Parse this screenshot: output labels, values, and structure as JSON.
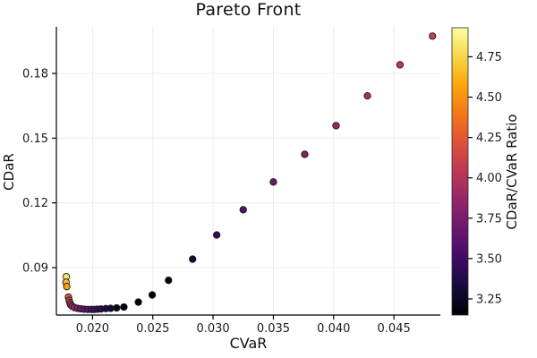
{
  "title": "Pareto Front",
  "chart_data": {
    "type": "scatter",
    "title": "Pareto Front",
    "xlabel": "CVaR",
    "ylabel": "CDaR",
    "colorbar_label": "CDaR/CVaR Ratio",
    "colormap": "inferno",
    "grid": true,
    "legend": "none",
    "marker": "circle",
    "xlim": [
      0.017,
      0.04885
    ],
    "ylim": [
      0.068,
      0.2016
    ],
    "clim": [
      3.15,
      4.93
    ],
    "x_ticks": {
      "values": [
        0.02,
        0.025,
        0.03,
        0.035,
        0.04,
        0.045
      ],
      "labels": [
        "0.020",
        "0.025",
        "0.030",
        "0.035",
        "0.040",
        "0.045"
      ]
    },
    "y_ticks": {
      "values": [
        0.09,
        0.12,
        0.15,
        0.18
      ],
      "labels": [
        "0.09",
        "0.12",
        "0.15",
        "0.18"
      ]
    },
    "colorbar_ticks": {
      "values": [
        3.25,
        3.5,
        3.75,
        4.0,
        4.25,
        4.5,
        4.75
      ],
      "labels": [
        "3.25",
        "3.50",
        "3.75",
        "4.00",
        "4.25",
        "4.50",
        "4.75"
      ]
    },
    "color_rule": "marker color = inferno( (CDaR/CVaR - clim[0]) / (clim[1] - clim[0]) )",
    "points_format": [
      "CVaR",
      "CDaR"
    ],
    "points": [
      [
        0.01782,
        0.0858
      ],
      [
        0.0178,
        0.0832
      ],
      [
        0.01786,
        0.0812
      ],
      [
        0.018,
        0.0763
      ],
      [
        0.01806,
        0.0748
      ],
      [
        0.01812,
        0.0737
      ],
      [
        0.01818,
        0.0728
      ],
      [
        0.0183,
        0.0721
      ],
      [
        0.01848,
        0.0715
      ],
      [
        0.01875,
        0.0711
      ],
      [
        0.019,
        0.0709
      ],
      [
        0.0193,
        0.0707
      ],
      [
        0.0196,
        0.0706
      ],
      [
        0.0199,
        0.0706
      ],
      [
        0.02015,
        0.0706
      ],
      [
        0.0204,
        0.0707
      ],
      [
        0.0207,
        0.0708
      ],
      [
        0.0211,
        0.071
      ],
      [
        0.0215,
        0.0711
      ],
      [
        0.022,
        0.0713
      ],
      [
        0.0226,
        0.0717
      ],
      [
        0.0238,
        0.074
      ],
      [
        0.02495,
        0.0773
      ],
      [
        0.0263,
        0.0841
      ],
      [
        0.0283,
        0.0939
      ],
      [
        0.0303,
        0.1051
      ],
      [
        0.0325,
        0.1168
      ],
      [
        0.035,
        0.1297
      ],
      [
        0.0376,
        0.1425
      ],
      [
        0.0402,
        0.1558
      ],
      [
        0.0428,
        0.1696
      ],
      [
        0.0455,
        0.184
      ],
      [
        0.0482,
        0.1973
      ]
    ]
  },
  "layout_colors": {
    "background": "#ffffff",
    "spine": "#000000",
    "gridline": "#ececec",
    "tick_label": "#1c1c1c",
    "marker_stroke": "#1a1a1a"
  }
}
